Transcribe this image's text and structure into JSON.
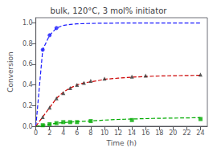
{
  "chart_data": {
    "type": "scatter",
    "title": "bulk, 120°C, 3 mol% initiator",
    "xlabel": "Time (h)",
    "ylabel": "Conversion",
    "xlim": [
      0,
      25
    ],
    "ylim": [
      0,
      1.05
    ],
    "xticks": [
      0,
      2,
      4,
      6,
      8,
      10,
      12,
      14,
      16,
      18,
      20,
      22,
      24
    ],
    "yticks": [
      {
        "value": 0,
        "label": "0.0"
      },
      0.2,
      0.4,
      0.6,
      0.8,
      {
        "value": 1,
        "label": "1.0"
      }
    ],
    "grid": false,
    "series": [
      {
        "type": "line",
        "line_style": "dashed",
        "color": "#1a1aff",
        "x": [
          0,
          1,
          2,
          3,
          4,
          5,
          6,
          7,
          8,
          9,
          10,
          11,
          12,
          13,
          14,
          15,
          16,
          17,
          18,
          19,
          20,
          21,
          22,
          23,
          24
        ],
        "values": [
          0.0,
          0.74,
          0.88,
          0.95,
          0.975,
          0.985,
          0.99,
          0.993,
          0.995,
          0.996,
          0.997,
          0.997,
          0.998,
          0.998,
          0.998,
          0.998,
          0.999,
          0.999,
          0.999,
          0.999,
          0.999,
          0.999,
          0.999,
          0.999,
          0.999
        ]
      },
      {
        "type": "line",
        "line_style": "dashed",
        "color": "#cc0000",
        "x": [
          0,
          1,
          2,
          3,
          4,
          5,
          6,
          7,
          8,
          9,
          10,
          11,
          12,
          13,
          14,
          15,
          16,
          17,
          18,
          19,
          20,
          21,
          22,
          23,
          24
        ],
        "values": [
          0.0,
          0.09,
          0.18,
          0.27,
          0.33,
          0.37,
          0.4,
          0.42,
          0.43,
          0.44,
          0.455,
          0.46,
          0.465,
          0.47,
          0.475,
          0.478,
          0.481,
          0.484,
          0.486,
          0.488,
          0.489,
          0.49,
          0.491,
          0.492,
          0.493
        ]
      },
      {
        "type": "line",
        "line_style": "dashed",
        "color": "#00aa00",
        "x": [
          0,
          1,
          2,
          3,
          4,
          5,
          6,
          7,
          8,
          9,
          10,
          11,
          12,
          13,
          14,
          15,
          16,
          17,
          18,
          19,
          20,
          21,
          22,
          23,
          24
        ],
        "values": [
          0.0,
          0.01,
          0.02,
          0.03,
          0.035,
          0.04,
          0.045,
          0.048,
          0.052,
          0.055,
          0.06,
          0.063,
          0.066,
          0.068,
          0.07,
          0.072,
          0.074,
          0.076,
          0.077,
          0.078,
          0.079,
          0.08,
          0.081,
          0.082,
          0.083
        ]
      },
      {
        "type": "scatter",
        "marker": "circle",
        "color": "#1a1aff",
        "x": [
          1,
          2,
          3
        ],
        "values": [
          0.74,
          0.88,
          0.95
        ]
      },
      {
        "type": "scatter",
        "marker": "triangle",
        "color": "#333333",
        "x": [
          1,
          2,
          3,
          4,
          5,
          6,
          7,
          8,
          10,
          14,
          16,
          24
        ],
        "values": [
          0.09,
          0.18,
          0.27,
          0.32,
          0.37,
          0.4,
          0.42,
          0.44,
          0.46,
          0.48,
          0.49,
          0.5
        ]
      },
      {
        "type": "scatter",
        "marker": "square",
        "color": "#00aa00",
        "x": [
          1,
          2,
          3,
          4,
          5,
          6,
          8,
          14,
          24
        ],
        "values": [
          0.01,
          0.02,
          0.03,
          0.04,
          0.04,
          0.04,
          0.05,
          0.06,
          0.07
        ]
      }
    ]
  }
}
